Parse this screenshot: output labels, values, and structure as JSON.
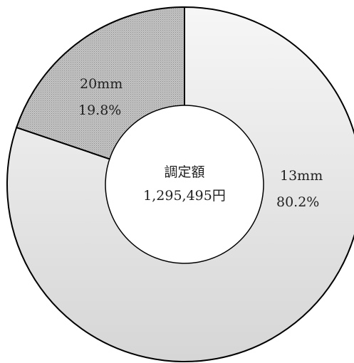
{
  "chart_data": {
    "type": "pie",
    "style": "donut",
    "categories": [
      "13mm",
      "20mm"
    ],
    "values": [
      80.2,
      19.8
    ],
    "value_labels": [
      "80.2%",
      "19.8%"
    ],
    "colors": [
      "#e8e8e8",
      "#bdbdbd"
    ],
    "center_text": [
      "調定額",
      "1,295,495円"
    ],
    "legend": "none"
  }
}
